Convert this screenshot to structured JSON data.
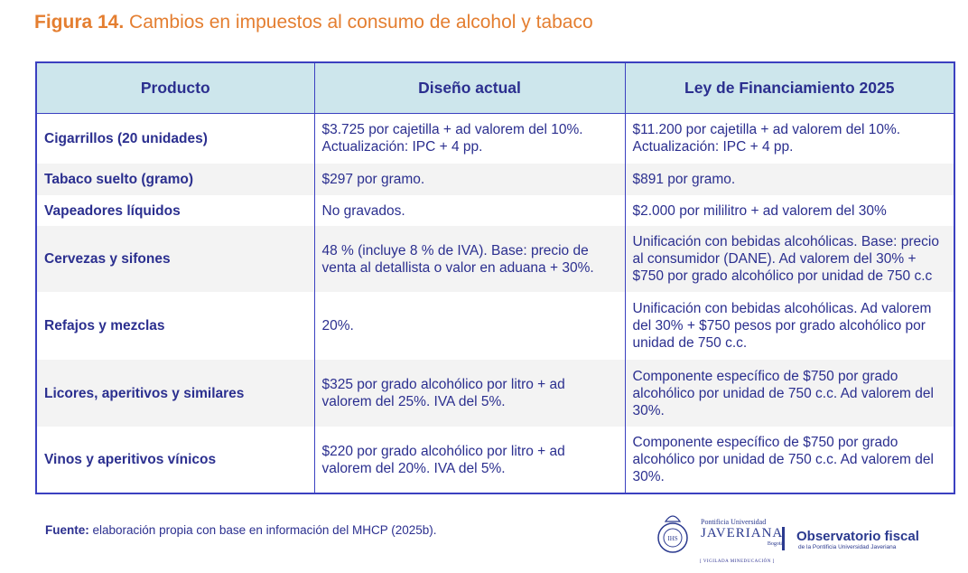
{
  "title": {
    "label": "Figura 14.",
    "text": "Cambios en impuestos al consumo de alcohol y tabaco"
  },
  "table": {
    "headers": [
      "Producto",
      "Diseño actual",
      "Ley de Financiamiento 2025"
    ],
    "rows": [
      {
        "product": "Cigarrillos (20 unidades)",
        "current": "$3.725 por cajetilla + ad valorem del 10%. Actualización: IPC + 4 pp.",
        "new": "$11.200 por cajetilla + ad valorem del 10%. Actualización: IPC + 4 pp."
      },
      {
        "product": "Tabaco suelto (gramo)",
        "current": "$297 por gramo.",
        "new": "$891 por gramo."
      },
      {
        "product": "Vapeadores líquidos",
        "current": "No gravados.",
        "new": "$2.000 por mililitro + ad valorem del 30%"
      },
      {
        "product": "Cervezas y sifones",
        "current": "48 % (incluye 8 % de IVA). Base: precio de venta al detallista o valor en aduana + 30%.",
        "new": "Unificación con bebidas alcohólicas. Base: precio al consumidor (DANE). Ad valorem del 30% + $750 por grado alcohólico por unidad de 750 c.c"
      },
      {
        "product": "Refajos y mezclas",
        "current": "20%.",
        "new": "Unificación con bebidas alcohólicas. Ad valorem del 30% + $750 pesos por grado alcohólico por unidad de 750 c.c."
      },
      {
        "product": "Licores, aperitivos y similares",
        "current": "$325 por grado alcohólico por litro + ad valorem del 25%. IVA del 5%.",
        "new": "Componente específico de $750 por grado alcohólico por unidad de 750 c.c. Ad valorem del 30%."
      },
      {
        "product": "Vinos y aperitivos vínicos",
        "current": "$220 por grado alcohólico por litro + ad valorem del 20%. IVA del 5%.",
        "new": "Componente específico de $750 por grado alcohólico por unidad de 750 c.c. Ad valorem del 30%."
      }
    ]
  },
  "source": {
    "label": "Fuente:",
    "text": "elaboración propia con base en información del MHCP (2025b)."
  },
  "logos": {
    "javeriana_top": "Pontificia Universidad",
    "javeriana_name": "JAVERIANA",
    "javeriana_city": "Bogotá",
    "vigilada": "[ VIGILADA MINEDUCACIÓN ]",
    "seal": "IHS",
    "observatorio": "Observatorio fiscal",
    "observatorio_sub": "de la Pontificia Universidad Javeriana"
  }
}
